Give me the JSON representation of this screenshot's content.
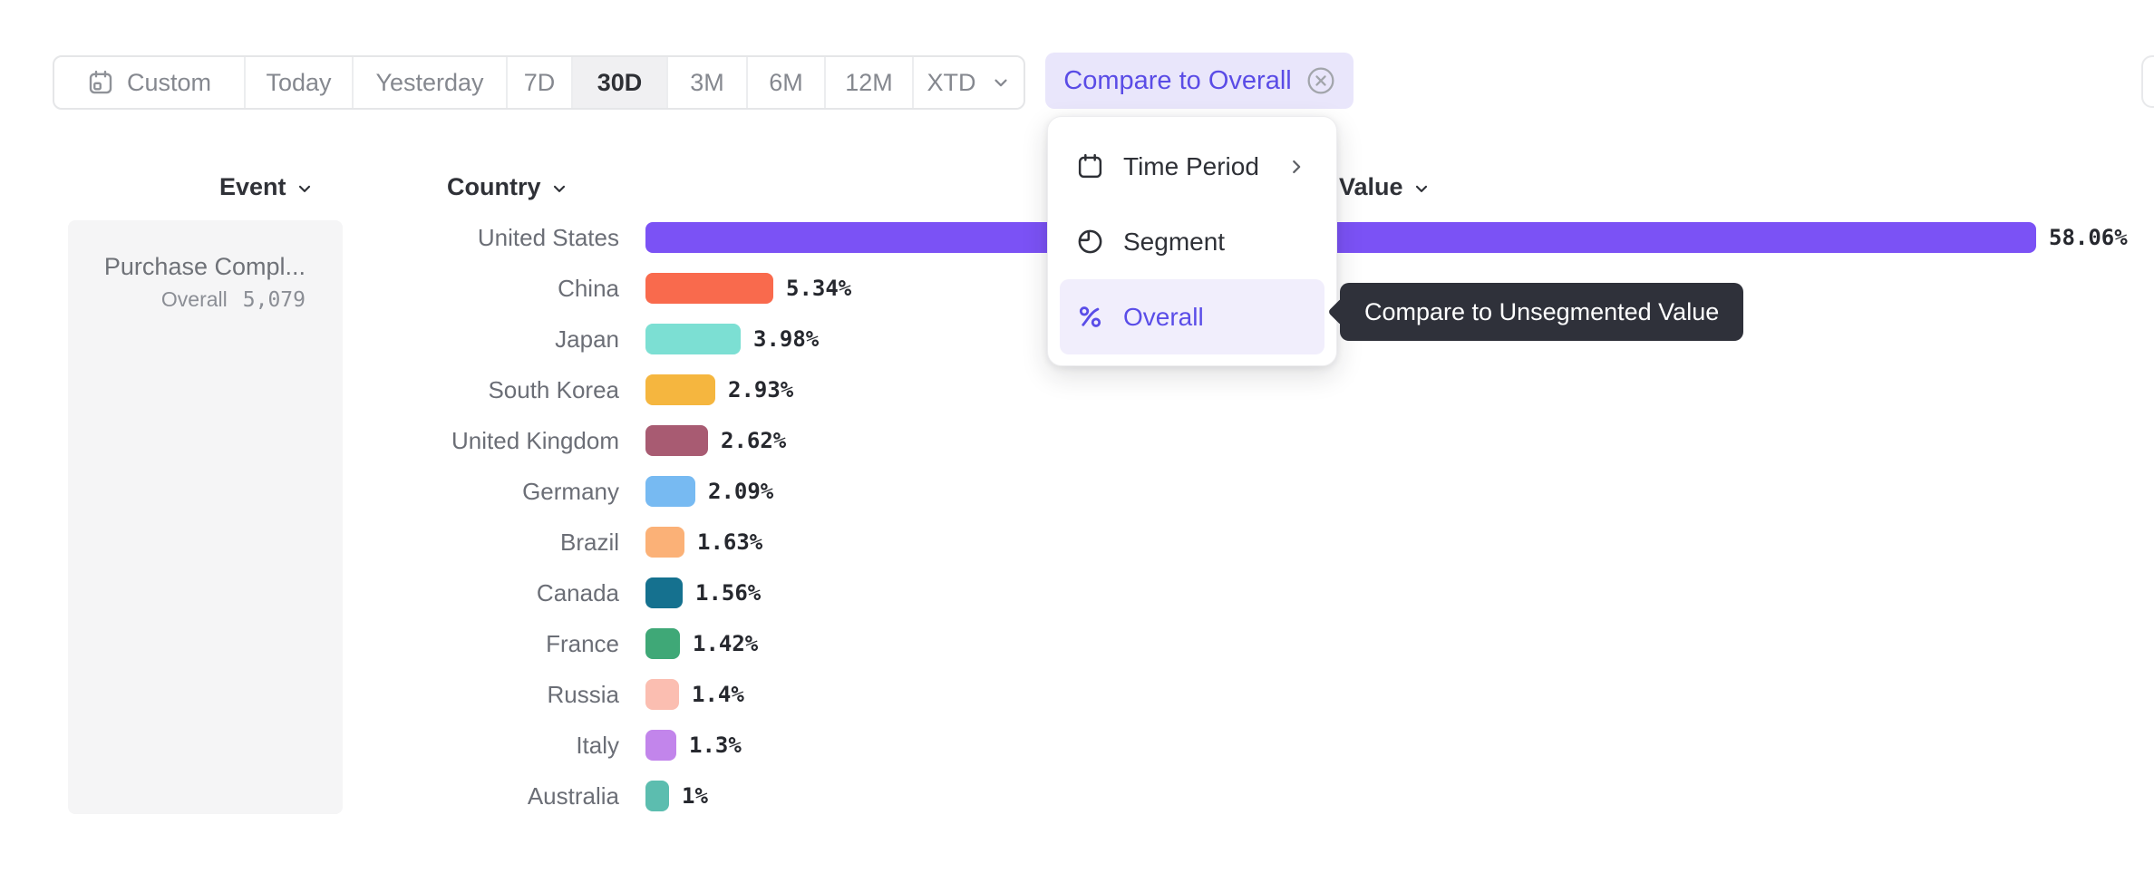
{
  "toolbar": {
    "buttons": [
      {
        "label": "Custom"
      },
      {
        "label": "Today"
      },
      {
        "label": "Yesterday"
      },
      {
        "label": "7D"
      },
      {
        "label": "30D"
      },
      {
        "label": "3M"
      },
      {
        "label": "6M"
      },
      {
        "label": "12M"
      },
      {
        "label": "XTD"
      }
    ],
    "selected": "30D"
  },
  "compare_chip": {
    "label": "Compare to Overall"
  },
  "columns": {
    "event": "Event",
    "country": "Country",
    "value": "Value"
  },
  "sidebar": {
    "event_name": "Purchase Compl...",
    "overall_label": "Overall",
    "overall_value": "5,079"
  },
  "menu": {
    "items": [
      {
        "label": "Time Period",
        "icon": "calendar-icon",
        "has_submenu": true
      },
      {
        "label": "Segment",
        "icon": "segment-icon",
        "has_submenu": false
      },
      {
        "label": "Overall",
        "icon": "percent-icon",
        "has_submenu": false,
        "active": true
      }
    ]
  },
  "tooltip": {
    "text": "Compare to Unsegmented Value"
  },
  "colors": {
    "accent_purple": "#5A4DE8",
    "chip_bg": "#E9E6FB",
    "chip_text": "#5A4CE6",
    "menu_highlight_bg": "#F1EEFC",
    "tooltip_bg": "#2F313A",
    "selected_range_bg": "#F0F0F2",
    "sidebar_bg": "#F5F5F6"
  },
  "chart_data": {
    "type": "bar",
    "orientation": "horizontal",
    "title": "",
    "xlabel": "",
    "ylabel": "",
    "legend": "none",
    "grid": false,
    "xlim": [
      0,
      58.06
    ],
    "categories": [
      "United States",
      "China",
      "Japan",
      "South Korea",
      "United Kingdom",
      "Germany",
      "Brazil",
      "Canada",
      "France",
      "Russia",
      "Italy",
      "Australia"
    ],
    "values": [
      58.06,
      5.34,
      3.98,
      2.93,
      2.62,
      2.09,
      1.63,
      1.56,
      1.42,
      1.4,
      1.3,
      1.0
    ],
    "value_labels": [
      "58.06%",
      "5.34%",
      "3.98%",
      "2.93%",
      "2.62%",
      "2.09%",
      "1.63%",
      "1.56%",
      "1.42%",
      "1.4%",
      "1.3%",
      "1%"
    ],
    "colors": [
      "#7B52F5",
      "#F96A4D",
      "#7CDFD3",
      "#F5B63F",
      "#A85B72",
      "#77BAF2",
      "#FBB177",
      "#15718F",
      "#3FA877",
      "#FBBEB1",
      "#C285EB",
      "#5CBDAF"
    ]
  }
}
